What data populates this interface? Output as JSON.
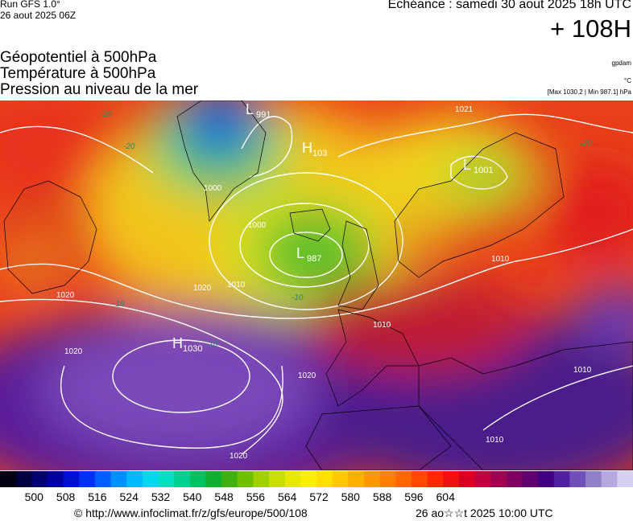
{
  "header": {
    "run": "Run GFS 1.0°",
    "run_date": "26 aout 2025 06Z",
    "valid": "Echéance : samedi 30 aout 2025 18h UTC",
    "lead": "+ 108H"
  },
  "legend": {
    "lines": [
      "Géopotentiel à 500hPa",
      "Température à 500hPa",
      "Pression au niveau de la mer"
    ],
    "units": [
      "gpdam",
      "°C",
      "[Max 1030.2 | Min 987.1] hPa"
    ]
  },
  "centers": [
    {
      "letter": "L",
      "value": "991"
    },
    {
      "letter": "H",
      "value": "103"
    },
    {
      "letter": "L",
      "value": "1001"
    },
    {
      "letter": "L",
      "value": "987"
    },
    {
      "letter": "H",
      "value": "1030"
    }
  ],
  "isobar_labels": [
    "1000",
    "1000",
    "1010",
    "1010",
    "1010",
    "1020",
    "1020",
    "1020",
    "1020",
    "1021",
    "1010",
    "1010",
    "1020"
  ],
  "temp_labels": [
    "-20",
    "-20",
    "-10",
    "-10",
    "-10",
    "-20"
  ],
  "colorbar": {
    "labels": [
      "500",
      "508",
      "516",
      "524",
      "532",
      "540",
      "548",
      "556",
      "564",
      "572",
      "580",
      "588",
      "596",
      "604"
    ]
  },
  "footer": {
    "url": "© http://www.infoclimat.fr/z/gfs/europe/500/108",
    "timestamp": "26 ao☆☆t 2025 10:00 UTC"
  }
}
